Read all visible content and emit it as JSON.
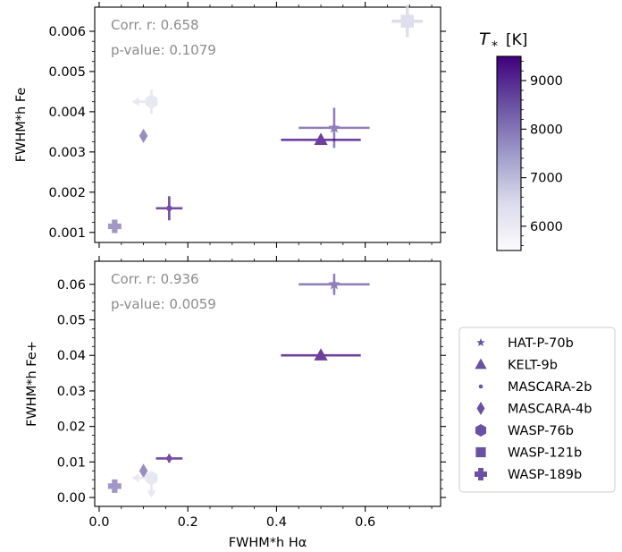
{
  "chart_data": [
    {
      "type": "scatter",
      "panel": "top",
      "ylabel": "FWHM*h Fe",
      "xlabel": "",
      "xlim": [
        -0.01,
        0.77
      ],
      "ylim": [
        0.00075,
        0.0066
      ],
      "yticks": [
        0.001,
        0.002,
        0.003,
        0.004,
        0.005,
        0.006
      ],
      "ytick_labels": [
        "0.001",
        "0.002",
        "0.003",
        "0.004",
        "0.005",
        "0.006"
      ],
      "annotation": {
        "corr": "Corr. r: 0.658",
        "pvalue": "p-value: 0.1079"
      },
      "points": [
        {
          "planet": "HAT-P-70b",
          "marker": "star",
          "x": 0.53,
          "y": 0.0036,
          "xerr": 0.08,
          "yerr": 0.0005,
          "teff": 8450
        },
        {
          "planet": "KELT-9b",
          "marker": "triangle",
          "x": 0.5,
          "y": 0.0033,
          "xerr": 0.09,
          "yerr": 0.0001,
          "teff": 9500
        },
        {
          "planet": "MASCARA-2b",
          "marker": "dot",
          "x": 0.158,
          "y": 0.0016,
          "xerr": 0.03,
          "yerr": 0.0003,
          "teff": 9300
        },
        {
          "planet": "MASCARA-4b",
          "marker": "diamond",
          "x": 0.1,
          "y": 0.0034,
          "xerr": 0.0,
          "yerr": 0.0001,
          "teff": 8200
        },
        {
          "planet": "WASP-76b",
          "marker": "hexagon",
          "x": 0.118,
          "y": 0.00425,
          "xerr": 0.0,
          "yerr": 0.0003,
          "teff": 6300,
          "upper_limit": "x"
        },
        {
          "planet": "WASP-121b",
          "marker": "square",
          "x": 0.695,
          "y": 0.00625,
          "xerr": 0.035,
          "yerr": 0.0004,
          "teff": 6600
        },
        {
          "planet": "WASP-189b",
          "marker": "plus",
          "x": 0.035,
          "y": 0.00115,
          "xerr": 0.012,
          "yerr": 0.0001,
          "teff": 8000
        }
      ]
    },
    {
      "type": "scatter",
      "panel": "bottom",
      "ylabel": "FWHM*h Fe+",
      "xlabel": "FWHM*h Hα",
      "xlim": [
        -0.01,
        0.77
      ],
      "ylim": [
        -0.0025,
        0.0665
      ],
      "xticks": [
        0.0,
        0.2,
        0.4,
        0.6
      ],
      "xtick_labels": [
        "0.0",
        "0.2",
        "0.4",
        "0.6"
      ],
      "yticks": [
        0.0,
        0.01,
        0.02,
        0.03,
        0.04,
        0.05,
        0.06
      ],
      "ytick_labels": [
        "0.00",
        "0.01",
        "0.02",
        "0.03",
        "0.04",
        "0.05",
        "0.06"
      ],
      "annotation": {
        "corr": "Corr. r: 0.936",
        "pvalue": "p-value: 0.0059"
      },
      "points": [
        {
          "planet": "HAT-P-70b",
          "marker": "star",
          "x": 0.53,
          "y": 0.06,
          "xerr": 0.08,
          "yerr": 0.003,
          "teff": 8450
        },
        {
          "planet": "KELT-9b",
          "marker": "triangle",
          "x": 0.5,
          "y": 0.04,
          "xerr": 0.09,
          "yerr": 0.0003,
          "teff": 9500
        },
        {
          "planet": "MASCARA-2b",
          "marker": "dot",
          "x": 0.158,
          "y": 0.011,
          "xerr": 0.03,
          "yerr": 0.0012,
          "teff": 9300
        },
        {
          "planet": "MASCARA-4b",
          "marker": "diamond",
          "x": 0.1,
          "y": 0.0075,
          "xerr": 0.0,
          "yerr": 0.0012,
          "teff": 8200
        },
        {
          "planet": "WASP-76b",
          "marker": "hexagon",
          "x": 0.118,
          "y": 0.0055,
          "xerr": 0.0,
          "yerr": 0.0,
          "teff": 6300,
          "upper_limit": "xy"
        },
        {
          "planet": "WASP-189b",
          "marker": "plus",
          "x": 0.035,
          "y": 0.0032,
          "xerr": 0.012,
          "yerr": 0.0012,
          "teff": 8000
        }
      ]
    }
  ],
  "colorbar": {
    "label": "T",
    "label_sub": "*",
    "unit": "[K]",
    "range": [
      5500,
      9500
    ],
    "ticks": [
      6000,
      7000,
      8000,
      9000
    ],
    "tick_labels": [
      "6000",
      "7000",
      "8000",
      "9000"
    ]
  },
  "legend": {
    "position": "lower-right",
    "entries": [
      {
        "label": "HAT-P-70b",
        "marker": "star"
      },
      {
        "label": "KELT-9b",
        "marker": "triangle"
      },
      {
        "label": "MASCARA-2b",
        "marker": "dot"
      },
      {
        "label": "MASCARA-4b",
        "marker": "diamond"
      },
      {
        "label": "WASP-76b",
        "marker": "hexagon"
      },
      {
        "label": "WASP-121b",
        "marker": "square"
      },
      {
        "label": "WASP-189b",
        "marker": "plus"
      }
    ]
  },
  "colors": {
    "cmap_low": "#fcfbfd",
    "cmap_high": "#3f007d",
    "legend_marker": "#6a51a3",
    "annotation": "#8c8c8c"
  }
}
